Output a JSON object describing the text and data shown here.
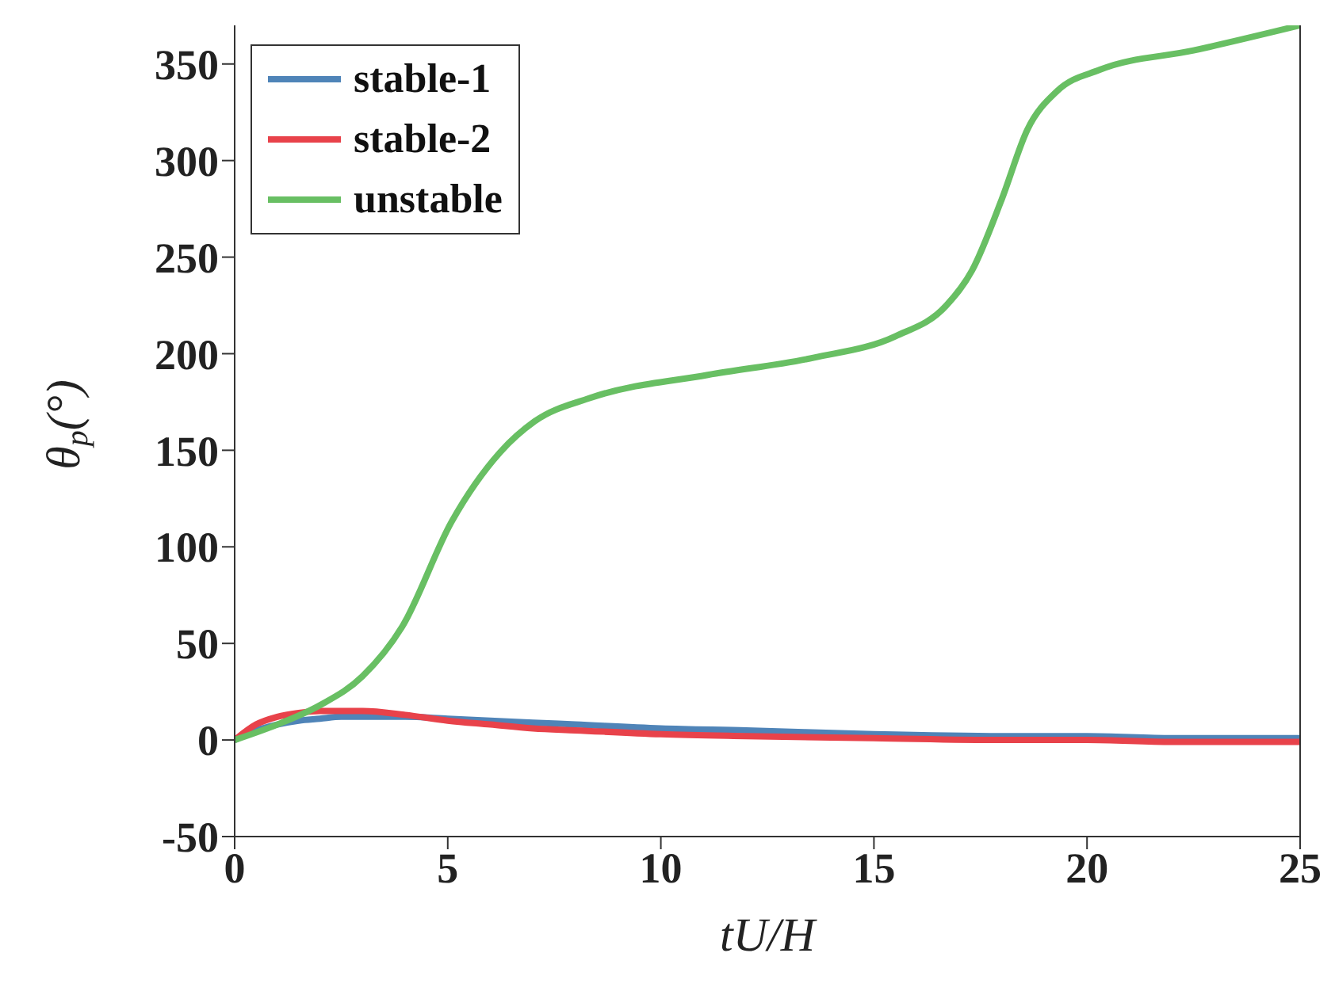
{
  "chart_data": {
    "type": "line",
    "xlabel": "tU/H",
    "ylabel": "θ$_{p}$(°)",
    "xlim": [
      0,
      25
    ],
    "xticks": [
      0,
      5,
      10,
      15,
      20,
      25
    ],
    "ylim": [
      -50,
      370
    ],
    "yticks": [
      -50,
      0,
      50,
      100,
      150,
      200,
      250,
      300,
      350
    ],
    "grid": false,
    "legend": "top left",
    "line_style": "solid",
    "marker": "none",
    "series": [
      {
        "name": "stable-1",
        "color": "#4f84b8",
        "x": [
          0,
          0.5,
          1,
          1.5,
          2,
          2.5,
          3,
          4,
          5,
          6,
          7,
          8,
          10,
          12,
          15,
          18,
          20,
          22,
          25
        ],
        "values": [
          0,
          5,
          8,
          10,
          11,
          12,
          12,
          12,
          11,
          10,
          9,
          8,
          6,
          5,
          3,
          2,
          2,
          1,
          1
        ]
      },
      {
        "name": "stable-2",
        "color": "#e8424a",
        "x": [
          0,
          0.5,
          1,
          1.5,
          2,
          2.5,
          3,
          4,
          5,
          6,
          7,
          8,
          10,
          12,
          15,
          18,
          20,
          22,
          25
        ],
        "values": [
          0,
          8,
          12,
          14,
          15,
          15,
          15,
          13,
          10,
          8,
          6,
          5,
          3,
          2,
          1,
          0,
          0,
          -1,
          -1
        ]
      },
      {
        "name": "unstable",
        "color": "#68bf63",
        "x": [
          0,
          1,
          2,
          3,
          3.94,
          5.09,
          6.23,
          7.04,
          8.33,
          11.1,
          13.6,
          15.5,
          16.7,
          17.3,
          18.0,
          18.6,
          19.3,
          20.3,
          22.5,
          25
        ],
        "values": [
          0,
          8,
          18,
          33,
          59,
          113,
          149,
          165,
          177,
          189,
          198,
          209,
          225,
          243,
          280,
          316,
          336,
          347,
          357,
          370
        ]
      }
    ]
  }
}
